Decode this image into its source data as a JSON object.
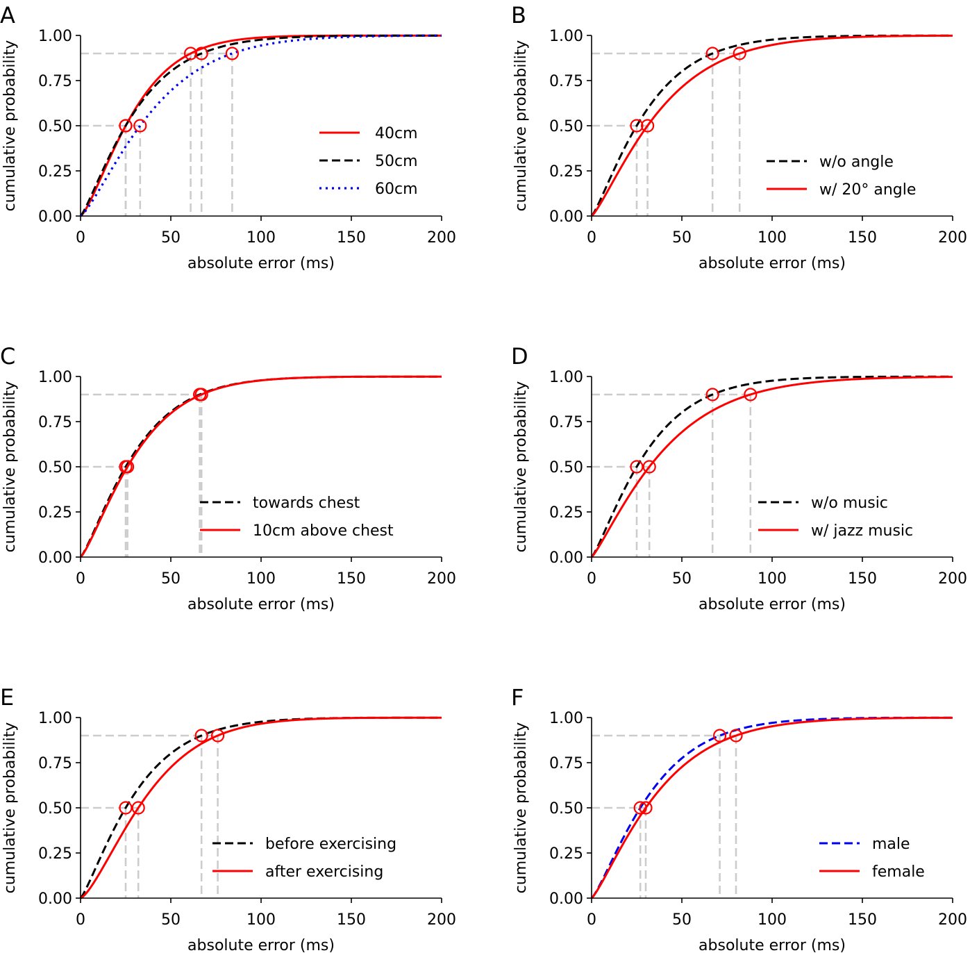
{
  "chart_data": [
    {
      "type": "line",
      "panel": "A",
      "xlabel": "absolute error (ms)",
      "ylabel": "cumulative probability",
      "xlim": [
        0,
        200
      ],
      "ylim": [
        0,
        1
      ],
      "xticks": [
        0,
        50,
        100,
        150,
        200
      ],
      "xtick_labels": [
        "0",
        "50",
        "100",
        "150",
        "200"
      ],
      "yticks": [
        0,
        0.25,
        0.5,
        0.75,
        1.0
      ],
      "ytick_labels": [
        "0.00",
        "0.25",
        "0.50",
        "0.75",
        "1.00"
      ],
      "legend_position": "center-right",
      "series": [
        {
          "name": "40cm",
          "color": "#ff0000",
          "style": "solid",
          "p50": 25,
          "p90": 61
        },
        {
          "name": "50cm",
          "color": "#000000",
          "style": "dashed",
          "p50": 25,
          "p90": 67
        },
        {
          "name": "60cm",
          "color": "#0000ee",
          "style": "dotted",
          "p50": 33,
          "p90": 84
        }
      ]
    },
    {
      "type": "line",
      "panel": "B",
      "xlabel": "absolute error (ms)",
      "ylabel": "cumulative probability",
      "xlim": [
        0,
        200
      ],
      "ylim": [
        0,
        1
      ],
      "xticks": [
        0,
        50,
        100,
        150,
        200
      ],
      "xtick_labels": [
        "0",
        "50",
        "100",
        "150",
        "200"
      ],
      "yticks": [
        0,
        0.25,
        0.5,
        0.75,
        1.0
      ],
      "ytick_labels": [
        "0.00",
        "0.25",
        "0.50",
        "0.75",
        "1.00"
      ],
      "legend_position": "lower-right",
      "series": [
        {
          "name": "w/o angle",
          "color": "#000000",
          "style": "dashed",
          "p50": 25,
          "p90": 67
        },
        {
          "name": "w/ 20° angle",
          "color": "#ff0000",
          "style": "solid",
          "p50": 31,
          "p90": 82
        }
      ]
    },
    {
      "type": "line",
      "panel": "C",
      "xlabel": "absolute error (ms)",
      "ylabel": "cumulative probability",
      "xlim": [
        0,
        200
      ],
      "ylim": [
        0,
        1
      ],
      "xticks": [
        0,
        50,
        100,
        150,
        200
      ],
      "xtick_labels": [
        "0",
        "50",
        "100",
        "150",
        "200"
      ],
      "yticks": [
        0,
        0.25,
        0.5,
        0.75,
        1.0
      ],
      "ytick_labels": [
        "0.00",
        "0.25",
        "0.50",
        "0.75",
        "1.00"
      ],
      "legend_position": "lower-right",
      "series": [
        {
          "name": "towards chest",
          "color": "#000000",
          "style": "dashed",
          "p50": 25,
          "p90": 66
        },
        {
          "name": "10cm above chest",
          "color": "#ff0000",
          "style": "solid",
          "p50": 26,
          "p90": 67
        }
      ]
    },
    {
      "type": "line",
      "panel": "D",
      "xlabel": "absolute error (ms)",
      "ylabel": "cumulative probability",
      "xlim": [
        0,
        200
      ],
      "ylim": [
        0,
        1
      ],
      "xticks": [
        0,
        50,
        100,
        150,
        200
      ],
      "xtick_labels": [
        "0",
        "50",
        "100",
        "150",
        "200"
      ],
      "yticks": [
        0,
        0.25,
        0.5,
        0.75,
        1.0
      ],
      "ytick_labels": [
        "0.00",
        "0.25",
        "0.50",
        "0.75",
        "1.00"
      ],
      "legend_position": "lower-right",
      "series": [
        {
          "name": "w/o music",
          "color": "#000000",
          "style": "dashed",
          "p50": 25,
          "p90": 67
        },
        {
          "name": "w/ jazz music",
          "color": "#ff0000",
          "style": "solid",
          "p50": 32,
          "p90": 88
        }
      ]
    },
    {
      "type": "line",
      "panel": "E",
      "xlabel": "absolute error (ms)",
      "ylabel": "cumulative probability",
      "xlim": [
        0,
        200
      ],
      "ylim": [
        0,
        1
      ],
      "xticks": [
        0,
        50,
        100,
        150,
        200
      ],
      "xtick_labels": [
        "0",
        "50",
        "100",
        "150",
        "200"
      ],
      "yticks": [
        0,
        0.25,
        0.5,
        0.75,
        1.0
      ],
      "ytick_labels": [
        "0.00",
        "0.25",
        "0.50",
        "0.75",
        "1.00"
      ],
      "legend_position": "lower-right",
      "series": [
        {
          "name": "before exercising",
          "color": "#000000",
          "style": "dashed",
          "p50": 25,
          "p90": 67
        },
        {
          "name": "after exercising",
          "color": "#ff0000",
          "style": "solid",
          "p50": 32,
          "p90": 76
        }
      ]
    },
    {
      "type": "line",
      "panel": "F",
      "xlabel": "absolute error (ms)",
      "ylabel": "cumulative probability",
      "xlim": [
        0,
        200
      ],
      "ylim": [
        0,
        1
      ],
      "xticks": [
        0,
        50,
        100,
        150,
        200
      ],
      "xtick_labels": [
        "0",
        "50",
        "100",
        "150",
        "200"
      ],
      "yticks": [
        0,
        0.25,
        0.5,
        0.75,
        1.0
      ],
      "ytick_labels": [
        "0.00",
        "0.25",
        "0.50",
        "0.75",
        "1.00"
      ],
      "legend_position": "lower-right",
      "series": [
        {
          "name": "male",
          "color": "#0000ee",
          "style": "dashed",
          "p50": 27,
          "p90": 71
        },
        {
          "name": "female",
          "color": "#ff0000",
          "style": "solid",
          "p50": 30,
          "p90": 80
        }
      ]
    }
  ]
}
